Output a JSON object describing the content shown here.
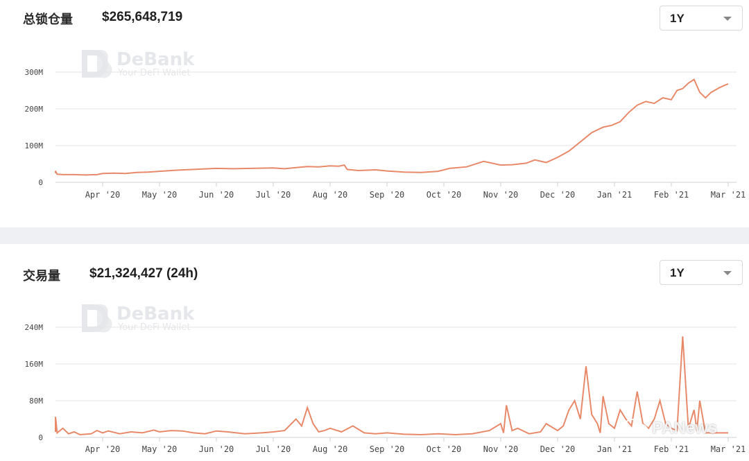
{
  "tvl_panel": {
    "title": "总锁仓量",
    "value": "$265,648,719",
    "range_selector": "1Y"
  },
  "volume_panel": {
    "title": "交易量",
    "value": "$21,324,427 (24h)",
    "range_selector": "1Y"
  },
  "watermark": {
    "brand": "DeBank",
    "tagline": "Your DeFi Wallet",
    "overlay_text": "PANews"
  },
  "colors": {
    "line": "#e8896a",
    "grid": "#e5e6e8",
    "divider": "#eef0f3"
  },
  "chart_data": [
    {
      "type": "line",
      "title": "总锁仓量",
      "x_unit": "month (2020-03 to 2021-03)",
      "ylim": [
        0,
        300000000
      ],
      "y_ticks": [
        0,
        100000000,
        200000000,
        300000000
      ],
      "y_tick_labels": [
        "0",
        "100M",
        "200M",
        "300M"
      ],
      "x_ticks": [
        1,
        2,
        3,
        4,
        5,
        6,
        7,
        8,
        9,
        10,
        11,
        12
      ],
      "x_tick_labels": [
        "Apr '20",
        "May '20",
        "Jun '20",
        "Jul '20",
        "Aug '20",
        "Sep '20",
        "Oct '20",
        "Nov '20",
        "Dec '20",
        "Jan '21",
        "Feb '21",
        "Mar '21"
      ],
      "x_range": [
        0.0,
        12.0
      ],
      "grid": true,
      "series": [
        {
          "x": [
            0.0,
            0.1,
            0.15,
            0.2,
            0.3,
            0.5,
            0.7,
            0.9,
            1.0,
            1.2,
            1.4,
            1.6,
            1.8,
            2.0,
            2.3,
            2.6,
            3.0,
            3.3,
            3.6,
            4.0,
            4.2,
            4.4,
            4.6,
            4.8,
            5.0,
            5.15,
            5.25,
            5.3,
            5.5,
            5.8,
            6.0,
            6.3,
            6.6,
            6.9,
            7.1,
            7.4,
            7.7,
            8.0,
            8.2,
            8.45,
            8.6,
            8.8,
            9.0,
            9.2,
            9.4,
            9.6,
            9.8,
            9.95,
            10.1,
            10.25,
            10.4,
            10.55,
            10.7,
            10.85,
            11.0,
            11.1,
            11.2,
            11.3,
            11.4,
            11.5,
            11.6,
            11.7,
            11.85,
            11.95,
            12.0
          ],
          "y": [
            28000000,
            25000000,
            31000000,
            22000000,
            21000000,
            21000000,
            20000000,
            21000000,
            24000000,
            25000000,
            24000000,
            27000000,
            28000000,
            30000000,
            33000000,
            35000000,
            38000000,
            37000000,
            38000000,
            39000000,
            37000000,
            40000000,
            43000000,
            42000000,
            45000000,
            44000000,
            47000000,
            35000000,
            32000000,
            34000000,
            31000000,
            28000000,
            27000000,
            30000000,
            38000000,
            42000000,
            57000000,
            47000000,
            48000000,
            52000000,
            61000000,
            54000000,
            68000000,
            85000000,
            110000000,
            135000000,
            150000000,
            155000000,
            165000000,
            190000000,
            210000000,
            220000000,
            215000000,
            230000000,
            225000000,
            250000000,
            255000000,
            270000000,
            280000000,
            245000000,
            230000000,
            245000000,
            258000000,
            265000000,
            268000000
          ]
        }
      ]
    },
    {
      "type": "line",
      "title": "交易量",
      "x_unit": "month (2020-03 to 2021-03)",
      "ylim": [
        0,
        240000000
      ],
      "y_ticks": [
        0,
        80000000,
        160000000,
        240000000
      ],
      "y_tick_labels": [
        "0",
        "80M",
        "160M",
        "240M"
      ],
      "x_ticks": [
        1,
        2,
        3,
        4,
        5,
        6,
        7,
        8,
        9,
        10,
        11,
        12
      ],
      "x_tick_labels": [
        "Apr '20",
        "May '20",
        "Jun '20",
        "Jul '20",
        "Aug '20",
        "Sep '20",
        "Oct '20",
        "Nov '20",
        "Dec '20",
        "Jan '21",
        "Feb '21",
        "Mar '21"
      ],
      "x_range": [
        0.0,
        12.0
      ],
      "grid": true,
      "series": [
        {
          "x": [
            0.0,
            0.05,
            0.1,
            0.15,
            0.2,
            0.3,
            0.4,
            0.5,
            0.6,
            0.8,
            0.9,
            1.0,
            1.1,
            1.3,
            1.5,
            1.7,
            1.9,
            2.0,
            2.2,
            2.4,
            2.6,
            2.8,
            3.0,
            3.2,
            3.5,
            3.8,
            4.0,
            4.2,
            4.4,
            4.5,
            4.6,
            4.7,
            4.8,
            4.9,
            5.0,
            5.2,
            5.4,
            5.6,
            5.8,
            6.0,
            6.3,
            6.6,
            6.9,
            7.2,
            7.5,
            7.8,
            8.0,
            8.05,
            8.1,
            8.2,
            8.3,
            8.5,
            8.7,
            8.8,
            9.0,
            9.1,
            9.2,
            9.3,
            9.4,
            9.5,
            9.6,
            9.7,
            9.75,
            9.8,
            9.9,
            10.0,
            10.1,
            10.2,
            10.3,
            10.4,
            10.5,
            10.6,
            10.7,
            10.8,
            10.9,
            11.0,
            11.1,
            11.2,
            11.3,
            11.4,
            11.45,
            11.5,
            11.6,
            11.65,
            11.7,
            11.8,
            11.9,
            11.95,
            12.0
          ],
          "y": [
            15000000,
            25000000,
            12000000,
            45000000,
            10000000,
            20000000,
            8000000,
            12000000,
            6000000,
            8000000,
            15000000,
            10000000,
            14000000,
            8000000,
            12000000,
            10000000,
            16000000,
            12000000,
            15000000,
            14000000,
            10000000,
            8000000,
            14000000,
            12000000,
            8000000,
            10000000,
            12000000,
            15000000,
            40000000,
            25000000,
            65000000,
            30000000,
            12000000,
            15000000,
            20000000,
            12000000,
            25000000,
            10000000,
            8000000,
            10000000,
            7000000,
            6000000,
            8000000,
            6000000,
            8000000,
            15000000,
            30000000,
            10000000,
            70000000,
            15000000,
            20000000,
            8000000,
            12000000,
            30000000,
            15000000,
            25000000,
            60000000,
            80000000,
            40000000,
            155000000,
            50000000,
            30000000,
            10000000,
            90000000,
            30000000,
            20000000,
            60000000,
            40000000,
            25000000,
            100000000,
            30000000,
            20000000,
            40000000,
            80000000,
            30000000,
            20000000,
            15000000,
            220000000,
            20000000,
            60000000,
            15000000,
            80000000,
            10000000,
            10000000,
            10000000,
            10000000,
            10000000,
            10000000,
            10000000
          ]
        }
      ]
    }
  ]
}
